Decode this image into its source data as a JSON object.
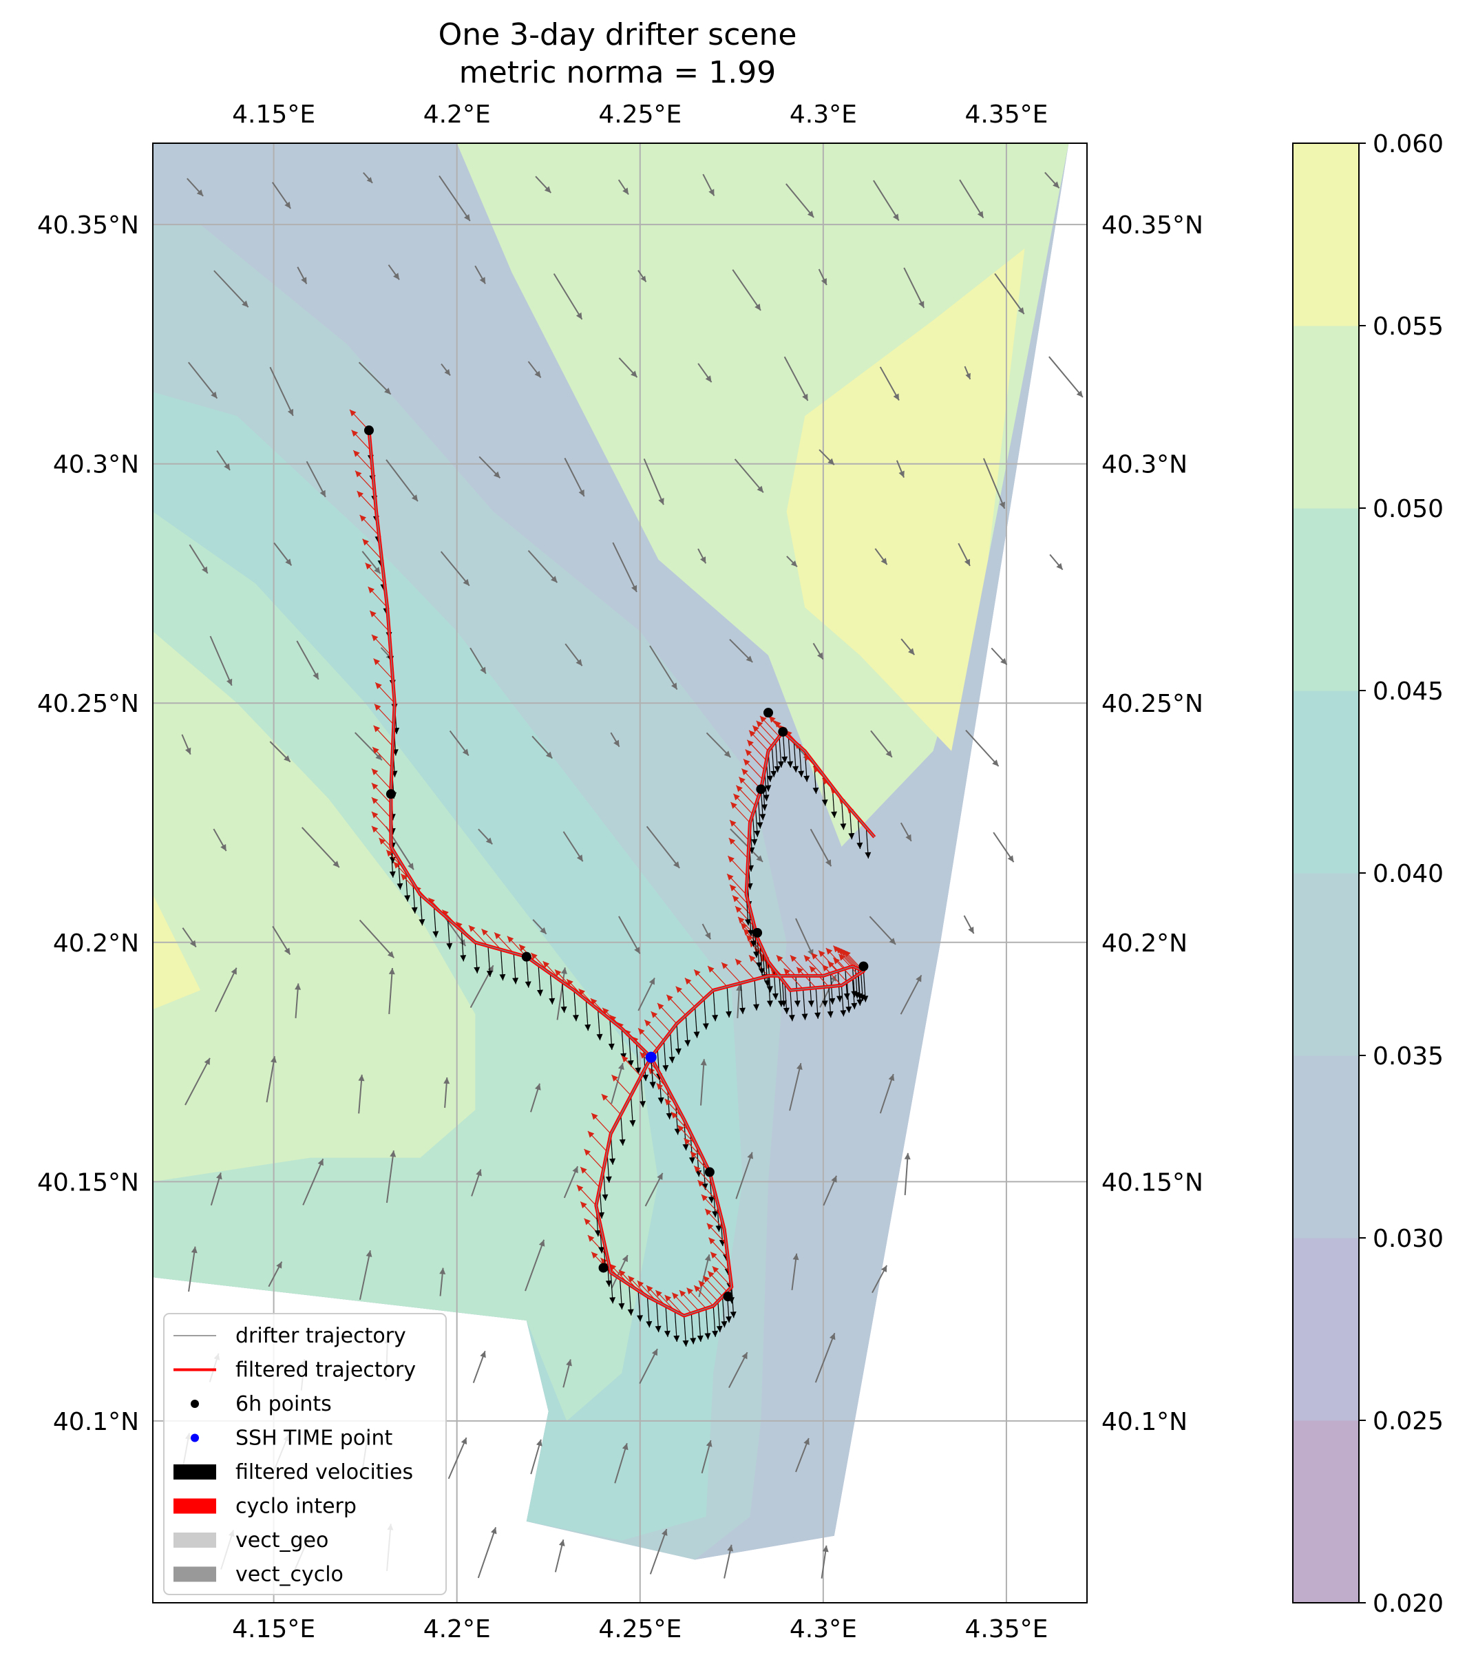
{
  "chart_data": {
    "type": "map-contour",
    "title_line1": "One 3-day drifter scene",
    "title_line2": "metric norma = 1.99",
    "xlim": [
      4.117,
      4.372
    ],
    "ylim": [
      40.062,
      40.367
    ],
    "xticks": [
      {
        "value": 4.15,
        "label": "4.15°E"
      },
      {
        "value": 4.2,
        "label": "4.2°E"
      },
      {
        "value": 4.25,
        "label": "4.25°E"
      },
      {
        "value": 4.3,
        "label": "4.3°E"
      },
      {
        "value": 4.35,
        "label": "4.35°E"
      }
    ],
    "yticks": [
      {
        "value": 40.1,
        "label": "40.1°N"
      },
      {
        "value": 40.15,
        "label": "40.15°N"
      },
      {
        "value": 40.2,
        "label": "40.2°N"
      },
      {
        "value": 40.25,
        "label": "40.25°N"
      },
      {
        "value": 40.3,
        "label": "40.3°N"
      },
      {
        "value": 40.35,
        "label": "40.35°N"
      }
    ],
    "grid": true,
    "colorbar": {
      "levels": [
        0.02,
        0.025,
        0.03,
        0.035,
        0.04,
        0.045,
        0.05,
        0.055,
        0.06
      ],
      "labels": [
        "0.020",
        "0.025",
        "0.030",
        "0.035",
        "0.040",
        "0.045",
        "0.050",
        "0.055",
        "0.060"
      ],
      "colors": [
        "#bfadcb",
        "#bcbbd8",
        "#bac9d8",
        "#b6d2d6",
        "#afdcd6",
        "#bde6d0",
        "#d5f0c4",
        "#f0f5b0"
      ]
    },
    "contour_bands": [
      {
        "level": 1,
        "points": [
          [
            4.117,
            40.367
          ],
          [
            4.367,
            40.367
          ],
          [
            4.332,
            40.2
          ],
          [
            4.303,
            40.076
          ],
          [
            4.265,
            40.071
          ],
          [
            4.219,
            40.079
          ],
          [
            4.225,
            40.102
          ],
          [
            4.219,
            40.121
          ],
          [
            4.117,
            40.13
          ]
        ]
      },
      {
        "level": 2,
        "points": [
          [
            4.117,
            40.367
          ],
          [
            4.367,
            40.367
          ],
          [
            4.332,
            40.2
          ],
          [
            4.303,
            40.076
          ],
          [
            4.265,
            40.071
          ],
          [
            4.219,
            40.079
          ],
          [
            4.225,
            40.102
          ],
          [
            4.219,
            40.121
          ],
          [
            4.117,
            40.13
          ]
        ]
      },
      {
        "level": 3,
        "points": [
          [
            4.117,
            40.35
          ],
          [
            4.13,
            40.35
          ],
          [
            4.17,
            40.325
          ],
          [
            4.21,
            40.29
          ],
          [
            4.25,
            40.265
          ],
          [
            4.28,
            40.235
          ],
          [
            4.29,
            40.2
          ],
          [
            4.285,
            40.15
          ],
          [
            4.283,
            40.1
          ],
          [
            4.28,
            40.08
          ],
          [
            4.265,
            40.071
          ],
          [
            4.219,
            40.079
          ],
          [
            4.225,
            40.102
          ],
          [
            4.219,
            40.121
          ],
          [
            4.117,
            40.13
          ]
        ]
      },
      {
        "level": 4,
        "points": [
          [
            4.117,
            40.315
          ],
          [
            4.14,
            40.31
          ],
          [
            4.175,
            40.285
          ],
          [
            4.2,
            40.265
          ],
          [
            4.23,
            40.235
          ],
          [
            4.255,
            40.21
          ],
          [
            4.275,
            40.19
          ],
          [
            4.278,
            40.15
          ],
          [
            4.27,
            40.11
          ],
          [
            4.268,
            40.08
          ],
          [
            4.245,
            40.075
          ],
          [
            4.219,
            40.079
          ],
          [
            4.225,
            40.102
          ],
          [
            4.219,
            40.121
          ],
          [
            4.117,
            40.13
          ]
        ]
      },
      {
        "level": 5,
        "points": [
          [
            4.117,
            40.29
          ],
          [
            4.145,
            40.275
          ],
          [
            4.175,
            40.25
          ],
          [
            4.2,
            40.225
          ],
          [
            4.23,
            40.195
          ],
          [
            4.25,
            40.175
          ],
          [
            4.255,
            40.15
          ],
          [
            4.25,
            40.13
          ],
          [
            4.245,
            40.11
          ],
          [
            4.23,
            40.1
          ],
          [
            4.219,
            40.121
          ],
          [
            4.117,
            40.13
          ]
        ]
      },
      {
        "level": 6,
        "points": [
          [
            4.117,
            40.265
          ],
          [
            4.14,
            40.25
          ],
          [
            4.165,
            40.23
          ],
          [
            4.19,
            40.205
          ],
          [
            4.205,
            40.185
          ],
          [
            4.205,
            40.165
          ],
          [
            4.19,
            40.155
          ],
          [
            4.16,
            40.155
          ],
          [
            4.117,
            40.15
          ]
        ]
      },
      {
        "level": 7,
        "points": [
          [
            4.117,
            40.21
          ],
          [
            4.13,
            40.19
          ],
          [
            4.117,
            40.186
          ]
        ]
      },
      {
        "level": 6,
        "points": [
          [
            4.2,
            40.367
          ],
          [
            4.367,
            40.367
          ],
          [
            4.345,
            40.28
          ],
          [
            4.33,
            40.24
          ],
          [
            4.305,
            40.22
          ],
          [
            4.295,
            40.24
          ],
          [
            4.285,
            40.26
          ],
          [
            4.255,
            40.28
          ],
          [
            4.235,
            40.31
          ],
          [
            4.215,
            40.34
          ],
          [
            4.2,
            40.367
          ]
        ]
      },
      {
        "level": 7,
        "points": [
          [
            4.295,
            40.31
          ],
          [
            4.33,
            40.33
          ],
          [
            4.355,
            40.345
          ],
          [
            4.345,
            40.28
          ],
          [
            4.335,
            40.24
          ],
          [
            4.31,
            40.26
          ],
          [
            4.295,
            40.27
          ],
          [
            4.29,
            40.29
          ]
        ]
      }
    ],
    "series": [
      {
        "name": "drifter trajectory",
        "color": "#7f7f7f"
      },
      {
        "name": "filtered trajectory",
        "color": "#ff0000",
        "points": [
          [
            4.176,
            40.307
          ],
          [
            4.178,
            40.29
          ],
          [
            4.181,
            40.27
          ],
          [
            4.183,
            40.25
          ],
          [
            4.182,
            40.232
          ],
          [
            4.182,
            40.22
          ],
          [
            4.19,
            40.21
          ],
          [
            4.205,
            40.2
          ],
          [
            4.219,
            40.197
          ],
          [
            4.232,
            40.19
          ],
          [
            4.245,
            40.182
          ],
          [
            4.253,
            40.176
          ],
          [
            4.262,
            40.163
          ],
          [
            4.269,
            40.152
          ],
          [
            4.273,
            40.14
          ],
          [
            4.275,
            40.128
          ],
          [
            4.27,
            40.124
          ],
          [
            4.262,
            40.122
          ],
          [
            4.252,
            40.126
          ],
          [
            4.242,
            40.131
          ],
          [
            4.238,
            40.145
          ],
          [
            4.242,
            40.16
          ],
          [
            4.253,
            40.176
          ],
          [
            4.26,
            40.183
          ],
          [
            4.27,
            40.19
          ],
          [
            4.285,
            40.193
          ],
          [
            4.3,
            40.193
          ],
          [
            4.308,
            40.195
          ],
          [
            4.311,
            40.194
          ],
          [
            4.305,
            40.191
          ],
          [
            4.291,
            40.19
          ],
          [
            4.285,
            40.196
          ],
          [
            4.282,
            40.201
          ],
          [
            4.279,
            40.21
          ],
          [
            4.28,
            40.225
          ],
          [
            4.283,
            40.232
          ],
          [
            4.285,
            40.24
          ],
          [
            4.289,
            40.244
          ],
          [
            4.295,
            40.24
          ],
          [
            4.305,
            40.23
          ],
          [
            4.314,
            40.222
          ]
        ]
      },
      {
        "name": "6h points",
        "color": "#000000",
        "points": [
          [
            4.176,
            40.307
          ],
          [
            4.182,
            40.231
          ],
          [
            4.219,
            40.197
          ],
          [
            4.269,
            40.152
          ],
          [
            4.24,
            40.132
          ],
          [
            4.274,
            40.126
          ],
          [
            4.282,
            40.202
          ],
          [
            4.311,
            40.195
          ],
          [
            4.283,
            40.232
          ],
          [
            4.285,
            40.248
          ],
          [
            4.289,
            40.244
          ]
        ]
      },
      {
        "name": "SSH TIME point",
        "color": "#0000ff",
        "points": [
          [
            4.253,
            40.176
          ]
        ]
      },
      {
        "name": "filtered velocities",
        "color": "#000000"
      },
      {
        "name": "cyclo interp",
        "color": "#ff0000"
      },
      {
        "name": "vect_geo",
        "color": "#cccccc"
      },
      {
        "name": "vect_cyclo",
        "color": "#999999"
      }
    ],
    "legend": {
      "location": "lower-left",
      "entries": [
        "drifter trajectory",
        "filtered trajectory",
        "6h points",
        "SSH TIME point",
        "filtered velocities",
        "cyclo interp",
        "vect_geo",
        "vect_cyclo"
      ]
    }
  }
}
